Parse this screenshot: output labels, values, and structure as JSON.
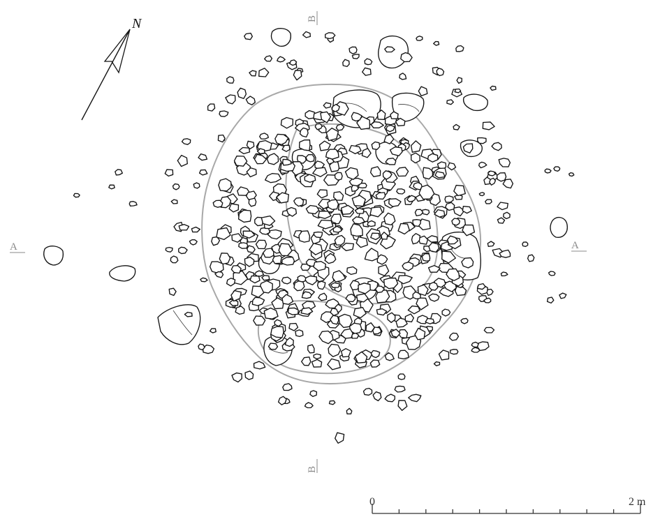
{
  "section_labels": {
    "a_left": "A",
    "a_right": "A",
    "b_top": "B",
    "b_bottom": "B"
  },
  "north_arrow": {
    "label": "N"
  },
  "scale_bar": {
    "start_label": "0",
    "end_label": "2 m",
    "divisions": 10
  },
  "colors": {
    "stone_outline": "#141414",
    "pit_outline": "#a8a8a8",
    "section_label": "#8a8a8a"
  }
}
